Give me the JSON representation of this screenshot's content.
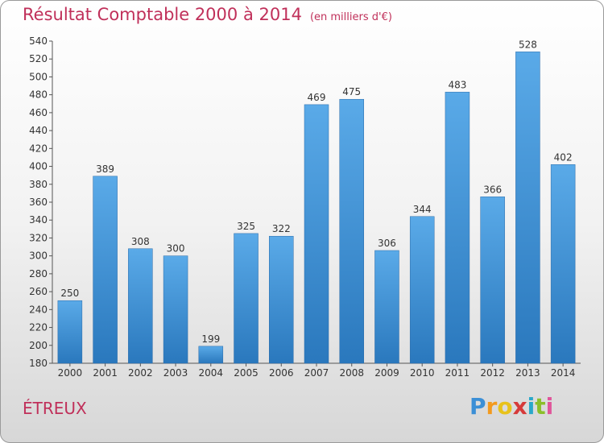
{
  "title": "Résultat Comptable 2000 à 2014",
  "subtitle": "(en milliers d'€)",
  "commune": "ÉTREUX",
  "logo": {
    "letters": [
      "P",
      "r",
      "o",
      "x",
      "i",
      "t",
      "i"
    ],
    "colors": [
      "#3b8fd6",
      "#f39a1e",
      "#e8c21b",
      "#d63a3a",
      "#2aa8c9",
      "#8bbf2a",
      "#e0559a"
    ]
  },
  "colors": {
    "bar_light": "#5aaae8",
    "bar_dark": "#2a7ac0",
    "accent": "#c0305a"
  },
  "chart_data": {
    "type": "bar",
    "title": "Résultat Comptable 2000 à 2014",
    "subtitle": "(en milliers d'€)",
    "categories": [
      "2000",
      "2001",
      "2002",
      "2003",
      "2004",
      "2005",
      "2006",
      "2007",
      "2008",
      "2009",
      "2010",
      "2011",
      "2012",
      "2013",
      "2014"
    ],
    "values": [
      250,
      389,
      308,
      300,
      199,
      325,
      322,
      469,
      475,
      306,
      344,
      483,
      366,
      528,
      402
    ],
    "ylim": [
      180,
      540
    ],
    "ytick_step": 20,
    "grid": false,
    "data_labels": true
  }
}
